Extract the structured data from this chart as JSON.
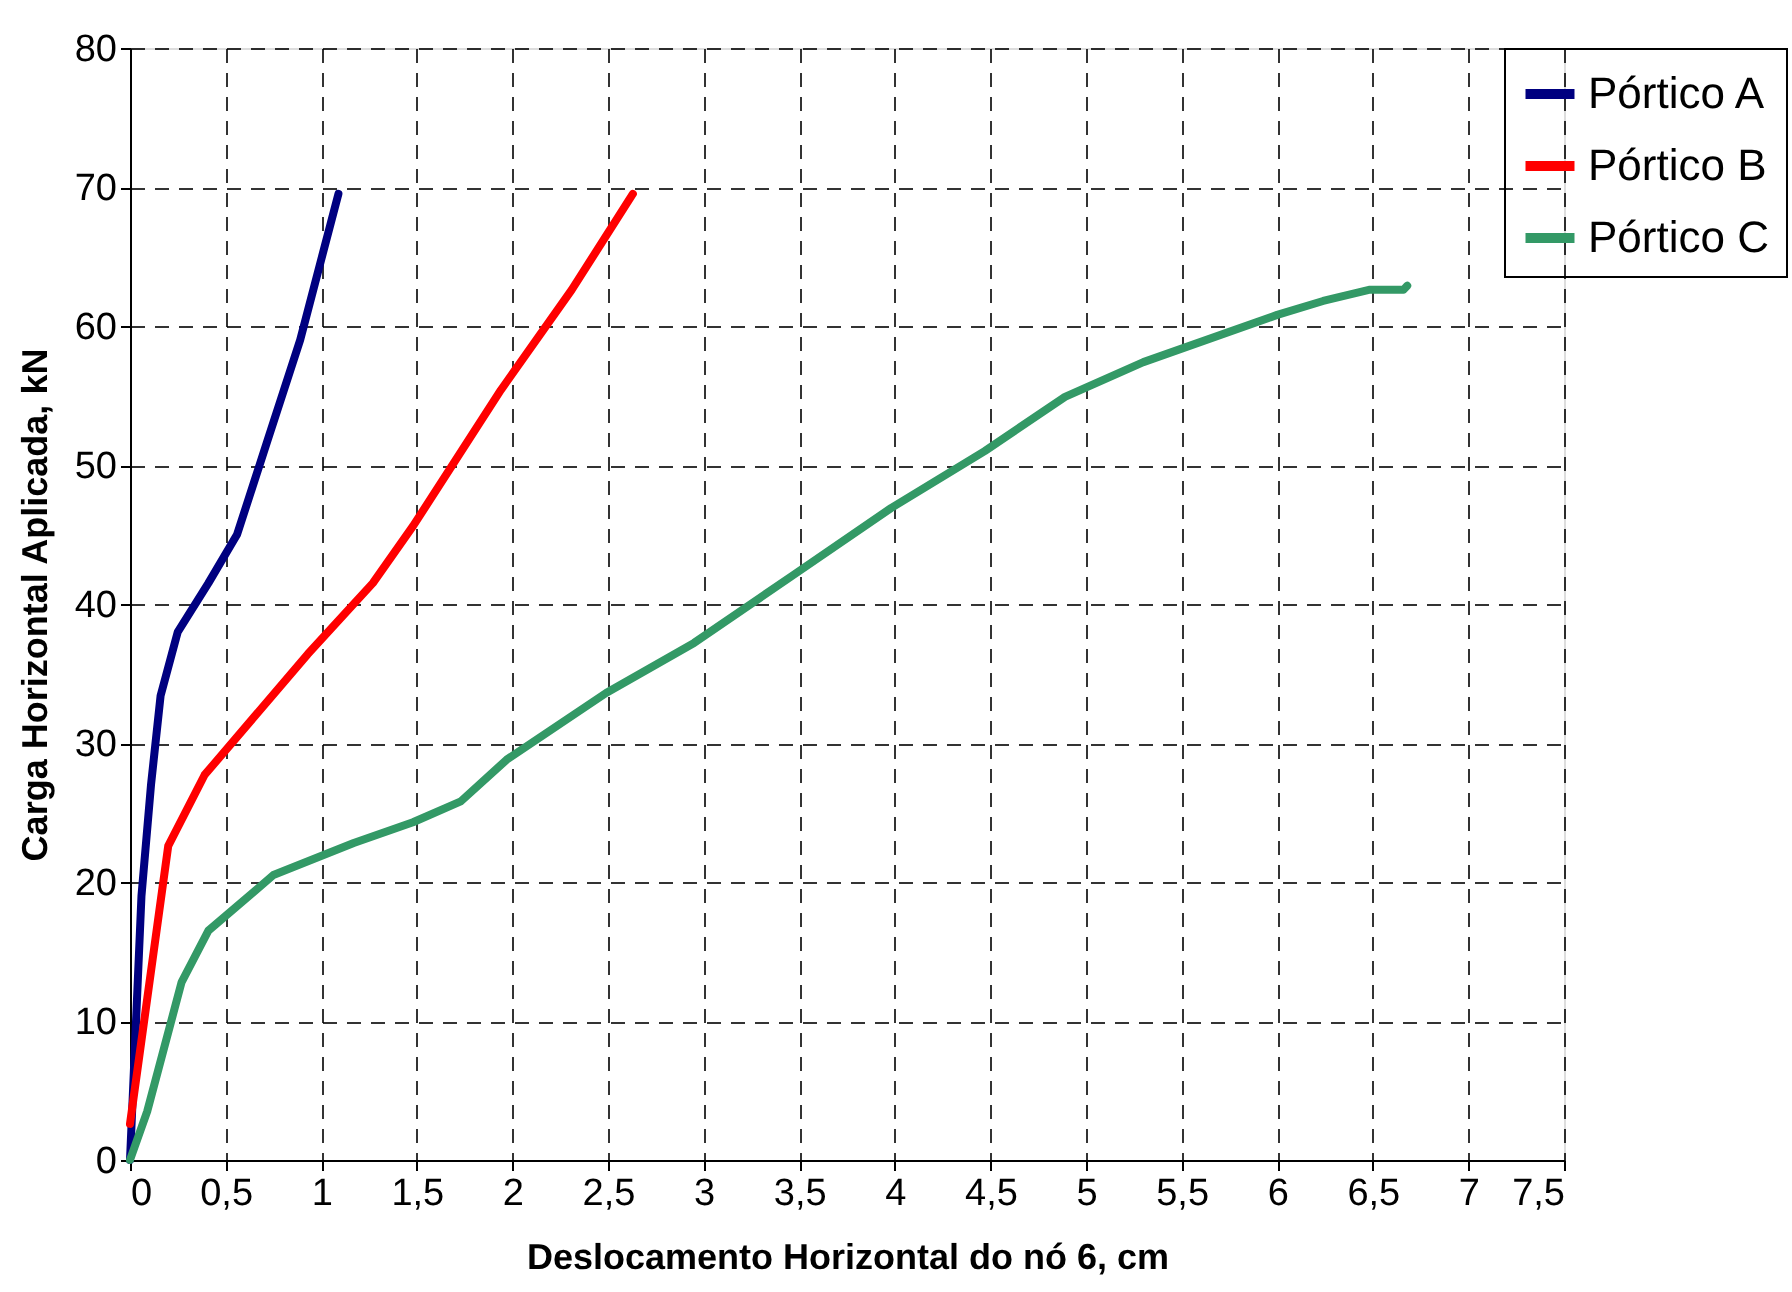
{
  "chart_data": {
    "type": "line",
    "xlabel": "Deslocamento Horizontal do nó 6, cm",
    "ylabel": "Carga Horizontal Aplicada, kN",
    "xlim": [
      0,
      7.5
    ],
    "ylim": [
      0,
      80
    ],
    "xticks": [
      0,
      {
        "value": 0.5,
        "label": "0,5"
      },
      1,
      {
        "value": 1.5,
        "label": "1,5"
      },
      2,
      {
        "value": 2.5,
        "label": "2,5"
      },
      3,
      {
        "value": 3.5,
        "label": "3,5"
      },
      4,
      {
        "value": 4.5,
        "label": "4,5"
      },
      5,
      {
        "value": 5.5,
        "label": "5,5"
      },
      6,
      {
        "value": 6.5,
        "label": "6,5"
      },
      7,
      {
        "value": 7.5,
        "label": "7,5"
      }
    ],
    "yticks": [
      0,
      10,
      20,
      30,
      40,
      50,
      60,
      70,
      80
    ],
    "grid": true,
    "legend": "right",
    "line_style": "solid",
    "marker": "none",
    "series": [
      {
        "name": "Pórtico A",
        "color": "#000080",
        "x": [
          0,
          0.06,
          0.11,
          0.16,
          0.25,
          0.41,
          0.56,
          0.72,
          0.89,
          1.09
        ],
        "values": [
          0,
          19,
          27,
          33.4,
          38,
          41.5,
          45,
          51.8,
          59,
          69.5
        ]
      },
      {
        "name": "Pórtico B",
        "color": "#ff0000",
        "x": [
          0,
          0.2,
          0.39,
          0.93,
          1.27,
          1.48,
          1.94,
          2.31,
          2.63
        ],
        "values": [
          2.6,
          22.6,
          27.7,
          36.4,
          41.5,
          45.6,
          55.4,
          62.6,
          69.5
        ]
      },
      {
        "name": "Pórtico C",
        "color": "#339966",
        "x": [
          0,
          0.09,
          0.27,
          0.41,
          0.75,
          1.17,
          1.48,
          1.73,
          1.97,
          2.49,
          2.95,
          3.46,
          3.98,
          4.47,
          4.89,
          5.3,
          6.0,
          6.24,
          6.48,
          6.66,
          6.68
        ],
        "values": [
          0,
          3.5,
          12.8,
          16.5,
          20.5,
          22.8,
          24.3,
          25.8,
          28.8,
          33.6,
          37.2,
          42,
          46.9,
          51,
          54.9,
          57.4,
          60.8,
          61.8,
          62.6,
          62.6,
          62.9
        ]
      }
    ]
  }
}
